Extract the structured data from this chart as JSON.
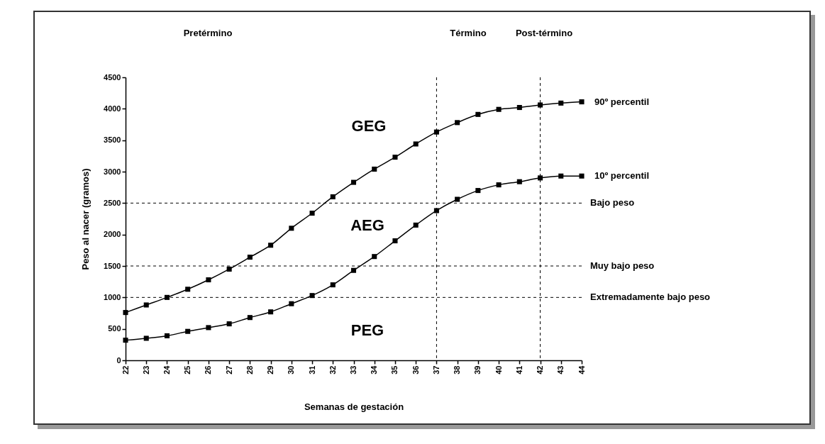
{
  "chart_data": {
    "type": "line",
    "xlabel": "Semanas de gestación",
    "ylabel": "Peso al nacer (gramos)",
    "x": [
      22,
      23,
      24,
      25,
      26,
      27,
      28,
      29,
      30,
      31,
      32,
      33,
      34,
      35,
      36,
      37,
      38,
      39,
      40,
      41,
      42,
      43,
      44
    ],
    "series": [
      {
        "name": "90º percentil",
        "color": "#000000",
        "values": [
          760,
          880,
          1000,
          1130,
          1280,
          1450,
          1640,
          1830,
          2100,
          2340,
          2600,
          2830,
          3040,
          3230,
          3440,
          3630,
          3780,
          3910,
          3990,
          4020,
          4060,
          4090,
          4110
        ]
      },
      {
        "name": "10º percentil",
        "color": "#000000",
        "values": [
          320,
          350,
          390,
          460,
          520,
          580,
          680,
          770,
          900,
          1030,
          1200,
          1430,
          1650,
          1900,
          2150,
          2380,
          2560,
          2700,
          2790,
          2840,
          2900,
          2930,
          2930
        ]
      }
    ],
    "xlim": [
      22,
      44
    ],
    "xticks": [
      22,
      23,
      24,
      25,
      26,
      27,
      28,
      29,
      30,
      31,
      32,
      33,
      34,
      35,
      36,
      37,
      38,
      39,
      40,
      41,
      42,
      43,
      44
    ],
    "ylim": [
      0,
      4500
    ],
    "yticks": [
      0,
      500,
      1000,
      1500,
      2000,
      2500,
      3000,
      3500,
      4000,
      4500
    ],
    "ref_lines": [
      {
        "axis": "y",
        "value": 2500,
        "label": "Bajo peso",
        "line_style": "dashed"
      },
      {
        "axis": "y",
        "value": 1500,
        "label": "Muy bajo peso",
        "line_style": "dashed"
      },
      {
        "axis": "y",
        "value": 1000,
        "label": "Extremadamente bajo peso",
        "line_style": "dashed"
      },
      {
        "axis": "x",
        "value": 37,
        "line_style": "dashed"
      },
      {
        "axis": "x",
        "value": 42,
        "line_style": "dashed"
      }
    ],
    "annotations": [
      "Pretérmino",
      "Término",
      "Post-término",
      "GEG",
      "AEG",
      "PEG"
    ],
    "marker": "square",
    "line_style": "solid",
    "grid": false,
    "legend": false
  }
}
